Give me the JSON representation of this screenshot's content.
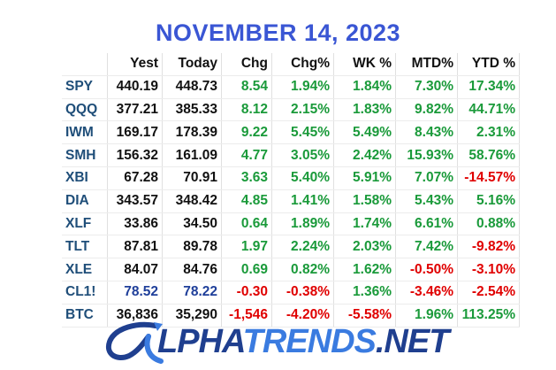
{
  "title": "NOVEMBER 14, 2023",
  "headers": [
    "",
    "Yest",
    "Today",
    "Chg",
    "Chg%",
    "WK %",
    "MTD%",
    "YTD %"
  ],
  "rows": [
    {
      "sym": "SPY",
      "yest": "440.19",
      "today": "448.73",
      "chg": "8.54",
      "chgp": "1.94%",
      "wk": "1.84%",
      "mtd": "7.30%",
      "ytd": "17.34%",
      "sign": [
        "pos",
        "pos",
        "pos",
        "pos",
        "pos"
      ]
    },
    {
      "sym": "QQQ",
      "yest": "377.21",
      "today": "385.33",
      "chg": "8.12",
      "chgp": "2.15%",
      "wk": "1.83%",
      "mtd": "9.82%",
      "ytd": "44.71%",
      "sign": [
        "pos",
        "pos",
        "pos",
        "pos",
        "pos"
      ]
    },
    {
      "sym": "IWM",
      "yest": "169.17",
      "today": "178.39",
      "chg": "9.22",
      "chgp": "5.45%",
      "wk": "5.49%",
      "mtd": "8.43%",
      "ytd": "2.31%",
      "sign": [
        "pos",
        "pos",
        "pos",
        "pos",
        "pos"
      ]
    },
    {
      "sym": "SMH",
      "yest": "156.32",
      "today": "161.09",
      "chg": "4.77",
      "chgp": "3.05%",
      "wk": "2.42%",
      "mtd": "15.93%",
      "ytd": "58.76%",
      "sign": [
        "pos",
        "pos",
        "pos",
        "pos",
        "pos"
      ]
    },
    {
      "sym": "XBI",
      "yest": "67.28",
      "today": "70.91",
      "chg": "3.63",
      "chgp": "5.40%",
      "wk": "5.91%",
      "mtd": "7.07%",
      "ytd": "-14.57%",
      "sign": [
        "pos",
        "pos",
        "pos",
        "pos",
        "neg"
      ]
    },
    {
      "sym": "DIA",
      "yest": "343.57",
      "today": "348.42",
      "chg": "4.85",
      "chgp": "1.41%",
      "wk": "1.58%",
      "mtd": "5.43%",
      "ytd": "5.16%",
      "sign": [
        "pos",
        "pos",
        "pos",
        "pos",
        "pos"
      ]
    },
    {
      "sym": "XLF",
      "yest": "33.86",
      "today": "34.50",
      "chg": "0.64",
      "chgp": "1.89%",
      "wk": "1.74%",
      "mtd": "6.61%",
      "ytd": "0.88%",
      "sign": [
        "pos",
        "pos",
        "pos",
        "pos",
        "pos"
      ]
    },
    {
      "sym": "TLT",
      "yest": "87.81",
      "today": "89.78",
      "chg": "1.97",
      "chgp": "2.24%",
      "wk": "2.03%",
      "mtd": "7.42%",
      "ytd": "-9.82%",
      "sign": [
        "pos",
        "pos",
        "pos",
        "pos",
        "neg"
      ]
    },
    {
      "sym": "XLE",
      "yest": "84.07",
      "today": "84.76",
      "chg": "0.69",
      "chgp": "0.82%",
      "wk": "1.62%",
      "mtd": "-0.50%",
      "ytd": "-3.10%",
      "sign": [
        "pos",
        "pos",
        "pos",
        "neg",
        "neg"
      ]
    },
    {
      "sym": "CL1!",
      "yest": "78.52",
      "today": "78.22",
      "chg": "-0.30",
      "chgp": "-0.38%",
      "wk": "1.36%",
      "mtd": "-3.46%",
      "ytd": "-2.54%",
      "sign": [
        "neg",
        "neg",
        "pos",
        "neg",
        "neg"
      ],
      "blue": true
    },
    {
      "sym": "BTC",
      "yest": "36,836",
      "today": "35,290",
      "chg": "-1,546",
      "chgp": "-4.20%",
      "wk": "-5.58%",
      "mtd": "1.96%",
      "ytd": "113.25%",
      "sign": [
        "neg",
        "neg",
        "neg",
        "pos",
        "pos"
      ]
    }
  ],
  "logo": {
    "alpha": "LPHA",
    "trends": "TRENDS",
    "net": ".NET"
  },
  "colors": {
    "positive": "#1a9a3a",
    "negative": "#e00000",
    "title": "#3a56d4",
    "symbol": "#1f4e79"
  }
}
